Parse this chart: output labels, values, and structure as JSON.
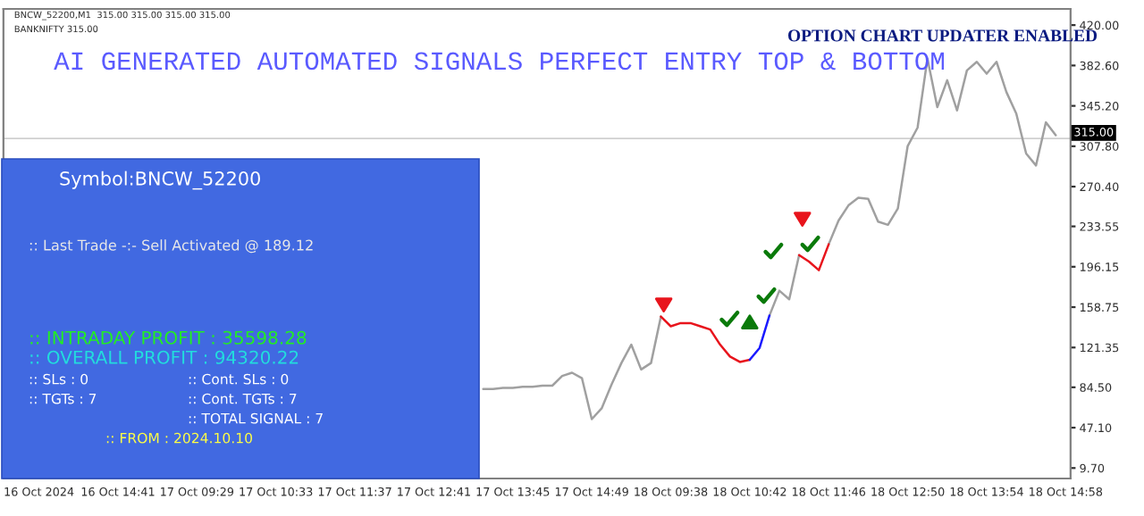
{
  "chart_data": {
    "type": "line",
    "title": "AI GENERATED AUTOMATED SIGNALS PERFECT ENTRY TOP & BOTTOM",
    "subtitle": "OPTION CHART UPDATER ENABLED",
    "categories": [
      "16 Oct 2024",
      null,
      null,
      null,
      null,
      null,
      null,
      null,
      "16 Oct 14:41",
      null,
      null,
      null,
      null,
      null,
      null,
      null,
      "17 Oct 09:29",
      null,
      null,
      null,
      null,
      null,
      null,
      null,
      "17 Oct 10:33",
      null,
      null,
      null,
      null,
      null,
      null,
      null,
      "17 Oct 11:37",
      null,
      null,
      null,
      null,
      null,
      null,
      null,
      "17 Oct 12:41",
      null,
      null,
      null,
      null,
      null,
      null,
      null,
      "17 Oct 13:45",
      null,
      null,
      null,
      null,
      null,
      null,
      null,
      "17 Oct 14:49",
      null,
      null,
      null,
      null,
      null,
      null,
      null,
      "18 Oct 09:38",
      null,
      null,
      null,
      null,
      null,
      null,
      null,
      "18 Oct 10:42",
      null,
      null,
      null,
      null,
      null,
      null,
      null,
      "18 Oct 11:46",
      null,
      null,
      null,
      null,
      null,
      null,
      null,
      "18 Oct 12:50",
      null,
      null,
      null,
      null,
      null,
      null,
      null,
      "18 Oct 13:54",
      null,
      null,
      null,
      null,
      null,
      null,
      null,
      "18 Oct 14:58",
      null
    ],
    "series": [
      {
        "color": "#a0a0a0",
        "values": [
          null,
          null,
          null,
          null,
          null,
          null,
          null,
          null,
          null,
          null,
          null,
          null,
          null,
          null,
          null,
          null,
          null,
          null,
          null,
          null,
          null,
          null,
          null,
          null,
          null,
          null,
          null,
          null,
          null,
          null,
          null,
          null,
          null,
          null,
          null,
          null,
          null,
          null,
          null,
          null,
          null,
          null,
          null,
          null,
          null,
          83,
          83,
          84,
          84,
          85,
          85,
          86,
          86,
          95,
          98,
          93,
          55,
          65,
          87,
          107,
          124,
          101,
          107,
          150,
          null,
          null,
          null,
          null,
          null,
          null,
          null,
          null,
          null,
          null,
          151,
          174,
          166,
          207,
          null,
          null,
          217,
          239,
          253,
          260,
          259,
          238,
          235,
          250,
          308,
          325,
          389,
          344,
          369,
          341,
          378,
          386,
          375,
          386,
          358,
          338,
          301,
          290,
          330,
          318,
          null,
          null
        ]
      },
      {
        "color": "#e8141c",
        "values": [
          null,
          null,
          null,
          null,
          null,
          null,
          null,
          null,
          null,
          null,
          null,
          null,
          null,
          null,
          null,
          null,
          null,
          null,
          null,
          null,
          null,
          null,
          null,
          null,
          null,
          null,
          null,
          null,
          null,
          null,
          null,
          null,
          null,
          null,
          null,
          null,
          null,
          null,
          null,
          null,
          null,
          null,
          null,
          null,
          null,
          null,
          null,
          null,
          null,
          null,
          null,
          null,
          null,
          null,
          null,
          null,
          null,
          null,
          null,
          null,
          null,
          null,
          null,
          150,
          141,
          144,
          144,
          141,
          138,
          124,
          113,
          108,
          110,
          null,
          null,
          null,
          null,
          207,
          201,
          193,
          217,
          null,
          null,
          null,
          null,
          null,
          null,
          null,
          null,
          null,
          null,
          null,
          null,
          null,
          null,
          null,
          null,
          null,
          null,
          null,
          null,
          null,
          null,
          null,
          null,
          null
        ]
      },
      {
        "color": "#1a1aff",
        "values": [
          null,
          null,
          null,
          null,
          null,
          null,
          null,
          null,
          null,
          null,
          null,
          null,
          null,
          null,
          null,
          null,
          null,
          null,
          null,
          null,
          null,
          null,
          null,
          null,
          null,
          null,
          null,
          null,
          null,
          null,
          null,
          null,
          null,
          null,
          null,
          null,
          null,
          null,
          null,
          null,
          null,
          null,
          null,
          null,
          null,
          null,
          null,
          null,
          null,
          null,
          null,
          null,
          null,
          null,
          null,
          null,
          null,
          null,
          null,
          null,
          null,
          null,
          null,
          null,
          null,
          null,
          null,
          null,
          null,
          null,
          null,
          null,
          110,
          121,
          151,
          null,
          null,
          null,
          null,
          null,
          null,
          null,
          null,
          null,
          null,
          null,
          null,
          null,
          null,
          null,
          null,
          null,
          null,
          null,
          null,
          null,
          null,
          null,
          null,
          null,
          null,
          null,
          null,
          null,
          null,
          null
        ]
      }
    ],
    "ylim": [
      0,
      435
    ],
    "yticks": [
      {
        "value": 9.7,
        "label": "9.70"
      },
      {
        "value": 47.1,
        "label": "47.10"
      },
      {
        "value": 84.5,
        "label": "84.50"
      },
      {
        "value": 121.35,
        "label": "121.35"
      },
      {
        "value": 158.75,
        "label": "158.75"
      },
      {
        "value": 196.15,
        "label": "196.15"
      },
      {
        "value": 233.55,
        "label": "233.55"
      },
      {
        "value": 270.4,
        "label": "270.40"
      },
      {
        "value": 307.8,
        "label": "307.80"
      },
      {
        "value": 345.2,
        "label": "345.20"
      },
      {
        "value": 382.6,
        "label": "382.60"
      },
      {
        "value": 420,
        "label": "420.00"
      }
    ],
    "ref_lines": [
      {
        "axis": "y",
        "value": 315,
        "label": "315.00",
        "color": "#d0d0d0",
        "line_style": "solid"
      }
    ],
    "grid": false,
    "annotations": [
      "BNCW_52200,M1  315.00 315.00 315.00 315.00",
      "BANKNIFTY 315.00",
      "Symbol:BNCW_52200",
      ":: Last Trade -:- Sell Activated @ 189.12",
      ":: INTRADAY PROFIT : 35598.28",
      ":: OVERALL PROFIT : 94320.22",
      ":: SLs : 0",
      ":: Cont. SLs : 0",
      ":: TGTs : 7",
      ":: Cont. TGTs : 7",
      ":: TOTAL SIGNAL : 7",
      ":: FROM : 2024.10.10"
    ]
  }
}
